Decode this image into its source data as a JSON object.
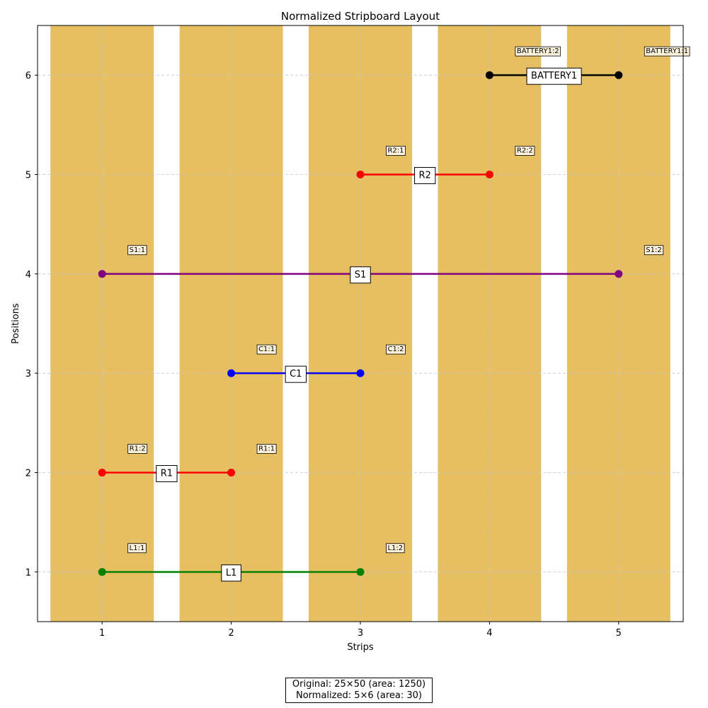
{
  "chart_data": {
    "type": "stripboard",
    "title": "Normalized Stripboard Layout",
    "xlabel": "Strips",
    "ylabel": "Positions",
    "xlim": [
      0.5,
      5.5
    ],
    "ylim": [
      0.5,
      6.5
    ],
    "xticks": [
      1,
      2,
      3,
      4,
      5
    ],
    "yticks": [
      1,
      2,
      3,
      4,
      5,
      6
    ],
    "grid": true,
    "strip_color": "#e6bf62",
    "strips": [
      1,
      2,
      3,
      4,
      5
    ],
    "components": [
      {
        "name": "L1",
        "color": "#008000",
        "y": 1,
        "x_start": 1,
        "x_end": 3,
        "pins": [
          {
            "label": "L1:1",
            "x": 1
          },
          {
            "label": "L1:2",
            "x": 3
          }
        ]
      },
      {
        "name": "R1",
        "color": "#ff0000",
        "y": 2,
        "x_start": 1,
        "x_end": 2,
        "pins": [
          {
            "label": "R1:2",
            "x": 1
          },
          {
            "label": "R1:1",
            "x": 2
          }
        ]
      },
      {
        "name": "C1",
        "color": "#0000ff",
        "y": 3,
        "x_start": 2,
        "x_end": 3,
        "pins": [
          {
            "label": "C1:1",
            "x": 2
          },
          {
            "label": "C1:2",
            "x": 3
          }
        ]
      },
      {
        "name": "S1",
        "color": "#800080",
        "y": 4,
        "x_start": 1,
        "x_end": 5,
        "pins": [
          {
            "label": "S1:1",
            "x": 1
          },
          {
            "label": "S1:2",
            "x": 5
          }
        ]
      },
      {
        "name": "R2",
        "color": "#ff0000",
        "y": 5,
        "x_start": 3,
        "x_end": 4,
        "pins": [
          {
            "label": "R2:1",
            "x": 3
          },
          {
            "label": "R2:2",
            "x": 4
          }
        ]
      },
      {
        "name": "BATTERY1",
        "color": "#000000",
        "y": 6,
        "x_start": 4,
        "x_end": 5,
        "pins": [
          {
            "label": "BATTERY1:2",
            "x": 4
          },
          {
            "label": "BATTERY1:1",
            "x": 5
          }
        ]
      }
    ]
  },
  "caption": {
    "line1": "Original: 25×50 (area: 1250)",
    "line2": "Normalized: 5×6 (area: 30)"
  }
}
